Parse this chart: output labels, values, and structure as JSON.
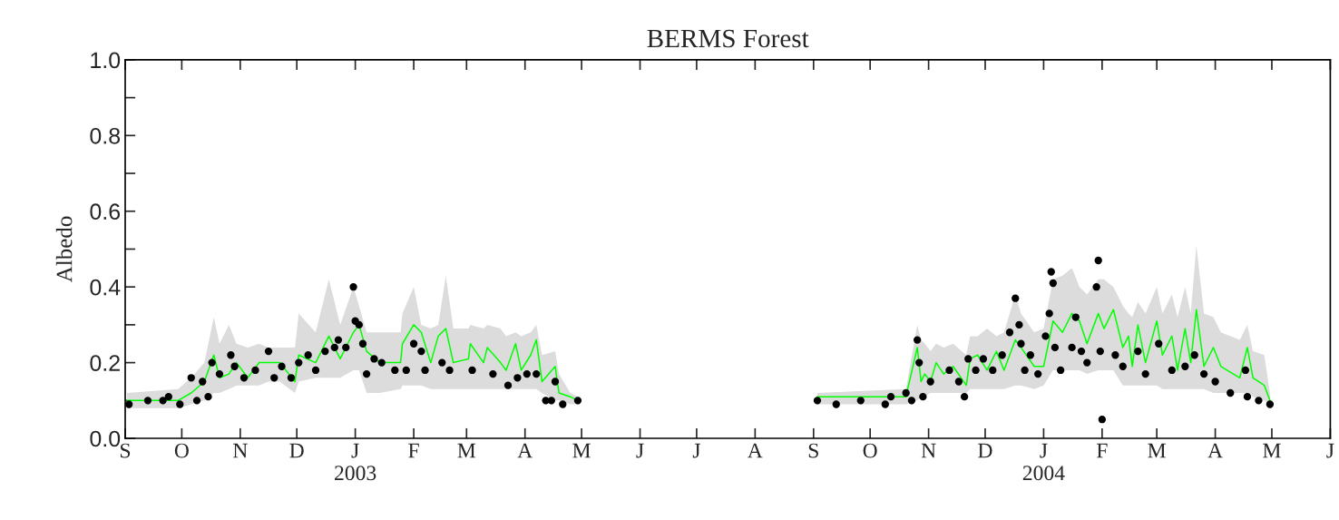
{
  "chart_data": {
    "type": "line",
    "title": "BERMS Forest",
    "ylabel": "Albedo",
    "xlim": [
      "2002-09-01",
      "2004-06-01"
    ],
    "xticks": [
      {
        "value": "2002-09-01",
        "label": "S"
      },
      {
        "value": "2002-10-01",
        "label": "O"
      },
      {
        "value": "2002-11-01",
        "label": "N"
      },
      {
        "value": "2002-12-01",
        "label": "D"
      },
      {
        "value": "2003-01-01",
        "label": "J\n2003"
      },
      {
        "value": "2003-02-01",
        "label": "F"
      },
      {
        "value": "2003-03-01",
        "label": "M"
      },
      {
        "value": "2003-04-01",
        "label": "A"
      },
      {
        "value": "2003-05-01",
        "label": "M"
      },
      {
        "value": "2003-06-01",
        "label": "J"
      },
      {
        "value": "2003-07-01",
        "label": "J"
      },
      {
        "value": "2003-08-01",
        "label": "A"
      },
      {
        "value": "2003-09-01",
        "label": "S"
      },
      {
        "value": "2003-10-01",
        "label": "O"
      },
      {
        "value": "2003-11-01",
        "label": "N"
      },
      {
        "value": "2003-12-01",
        "label": "D"
      },
      {
        "value": "2004-01-01",
        "label": "J\n2004"
      },
      {
        "value": "2004-02-01",
        "label": "F"
      },
      {
        "value": "2004-03-01",
        "label": "M"
      },
      {
        "value": "2004-04-01",
        "label": "A"
      },
      {
        "value": "2004-05-01",
        "label": "M"
      },
      {
        "value": "2004-06-01",
        "label": "J"
      }
    ],
    "ylim": [
      0,
      1
    ],
    "yticks": [
      {
        "value": 0,
        "label": "0.0"
      },
      {
        "value": 0.1,
        "label": null
      },
      {
        "value": 0.2,
        "label": "0.2"
      },
      {
        "value": 0.3,
        "label": null
      },
      {
        "value": 0.4,
        "label": "0.4"
      },
      {
        "value": 0.5,
        "label": null
      },
      {
        "value": 0.6,
        "label": "0.6"
      },
      {
        "value": 0.7,
        "label": null
      },
      {
        "value": 0.8,
        "label": "0.8"
      },
      {
        "value": 0.9,
        "label": null
      },
      {
        "value": 1,
        "label": "1.0"
      }
    ],
    "grid": false,
    "series": [
      {
        "color": "#00ff00",
        "marker": "none",
        "line_style": "solid",
        "x": [
          "2002-09-02",
          "2002-09-29",
          "2002-10-06",
          "2002-10-13",
          "2002-10-18",
          "2002-10-21",
          "2002-10-26",
          "2002-10-30",
          "2002-11-05",
          "2002-11-11",
          "2002-11-16",
          "2002-11-22",
          "2002-11-30",
          "2002-12-02",
          "2002-12-11",
          "2002-12-18",
          "2002-12-24",
          "2002-12-31",
          "2003-01-03",
          "2003-01-07",
          "2003-01-14",
          "2003-01-25",
          "2003-01-26",
          "2003-02-01",
          "2003-02-05",
          "2003-02-10",
          "2003-02-14",
          "2003-02-18",
          "2003-02-22",
          "2003-03-02",
          "2003-03-03",
          "2003-03-10",
          "2003-03-12",
          "2003-03-19",
          "2003-03-22",
          "2003-03-27",
          "2003-03-30",
          "2003-04-04",
          "2003-04-07",
          "2003-04-10",
          "2003-04-17",
          "2003-04-19",
          "2003-04-25",
          "2003-04-29",
          "2003-07-01",
          "2003-09-03",
          "2003-10-20",
          "2003-10-26",
          "2003-10-28",
          "2003-10-30",
          "2003-11-02",
          "2003-11-05",
          "2003-11-09",
          "2003-11-14",
          "2003-11-21",
          "2003-11-23",
          "2003-11-27",
          "2003-12-02",
          "2003-12-07",
          "2003-12-11",
          "2003-12-17",
          "2003-12-20",
          "2003-12-27",
          "2004-01-01",
          "2004-01-06",
          "2004-01-11",
          "2004-01-16",
          "2004-01-20",
          "2004-01-24",
          "2004-01-30",
          "2004-02-02",
          "2004-02-07",
          "2004-02-12",
          "2004-02-15",
          "2004-02-17",
          "2004-02-20",
          "2004-02-24",
          "2004-03-01",
          "2004-03-04",
          "2004-03-09",
          "2004-03-12",
          "2004-03-16",
          "2004-03-19",
          "2004-03-22",
          "2004-03-26",
          "2004-03-31",
          "2004-04-04",
          "2004-04-14",
          "2004-04-18",
          "2004-04-21",
          "2004-04-27",
          "2004-04-30"
        ],
        "values": [
          0.1,
          0.1,
          0.12,
          0.15,
          0.22,
          0.16,
          0.17,
          0.2,
          0.16,
          0.2,
          0.2,
          0.2,
          0.15,
          0.22,
          0.2,
          0.27,
          0.21,
          0.28,
          0.3,
          0.23,
          0.2,
          0.2,
          0.25,
          0.3,
          0.28,
          0.2,
          0.27,
          0.29,
          0.2,
          0.21,
          0.25,
          0.2,
          0.24,
          0.2,
          0.18,
          0.25,
          0.18,
          0.22,
          0.26,
          0.15,
          0.19,
          0.12,
          0.11,
          0.1,
          null,
          0.11,
          0.11,
          0.24,
          0.15,
          0.17,
          0.15,
          0.2,
          0.17,
          0.19,
          0.14,
          0.21,
          0.22,
          0.18,
          0.23,
          0.18,
          0.26,
          0.24,
          0.19,
          0.19,
          0.31,
          0.28,
          0.33,
          0.31,
          0.25,
          0.33,
          0.29,
          0.34,
          0.24,
          0.27,
          0.19,
          0.3,
          0.2,
          0.31,
          0.22,
          0.27,
          0.18,
          0.29,
          0.2,
          0.34,
          0.19,
          0.24,
          0.19,
          0.16,
          0.24,
          0.16,
          0.14,
          0.1
        ],
        "lower": [
          0.08,
          0.08,
          0.09,
          0.1,
          0.12,
          0.12,
          0.13,
          0.14,
          0.14,
          0.14,
          0.15,
          0.15,
          0.12,
          0.15,
          0.16,
          0.16,
          0.16,
          0.18,
          0.18,
          0.12,
          0.12,
          0.13,
          0.14,
          0.14,
          0.14,
          0.13,
          0.13,
          0.13,
          0.13,
          0.13,
          0.13,
          0.13,
          0.13,
          0.13,
          0.13,
          0.13,
          0.13,
          0.13,
          0.13,
          0.12,
          0.1,
          0.1,
          0.09,
          0.09,
          null,
          0.09,
          0.09,
          0.1,
          0.11,
          0.11,
          0.12,
          0.12,
          0.12,
          0.12,
          0.12,
          0.13,
          0.13,
          0.13,
          0.13,
          0.13,
          0.14,
          0.14,
          0.13,
          0.14,
          0.18,
          0.18,
          0.18,
          0.18,
          0.17,
          0.18,
          0.18,
          0.18,
          0.14,
          0.14,
          0.14,
          0.14,
          0.14,
          0.14,
          0.13,
          0.13,
          0.13,
          0.13,
          0.13,
          0.13,
          0.13,
          0.12,
          0.12,
          0.12,
          0.12,
          0.11,
          0.1,
          0.09
        ],
        "upper": [
          0.12,
          0.13,
          0.16,
          0.2,
          0.32,
          0.25,
          0.3,
          0.25,
          0.24,
          0.25,
          0.24,
          0.24,
          0.24,
          0.33,
          0.28,
          0.42,
          0.3,
          0.4,
          0.35,
          0.28,
          0.28,
          0.28,
          0.33,
          0.4,
          0.3,
          0.29,
          0.3,
          0.43,
          0.29,
          0.29,
          0.3,
          0.29,
          0.3,
          0.29,
          0.27,
          0.28,
          0.27,
          0.28,
          0.3,
          0.22,
          0.23,
          0.17,
          0.12,
          0.11,
          null,
          0.12,
          0.13,
          0.3,
          0.26,
          0.25,
          0.23,
          0.25,
          0.24,
          0.25,
          0.22,
          0.27,
          0.27,
          0.29,
          0.27,
          0.28,
          0.38,
          0.33,
          0.28,
          0.29,
          0.42,
          0.43,
          0.45,
          0.4,
          0.38,
          0.42,
          0.42,
          0.4,
          0.35,
          0.33,
          0.32,
          0.36,
          0.33,
          0.4,
          0.33,
          0.38,
          0.32,
          0.4,
          0.33,
          0.51,
          0.33,
          0.32,
          0.28,
          0.26,
          0.3,
          0.23,
          0.22,
          0.12
        ]
      },
      {
        "type": "scatter",
        "color": "#000000",
        "marker": "circle",
        "x": [
          "2002-09-03",
          "2002-09-13",
          "2002-09-21",
          "2002-09-24",
          "2002-09-30",
          "2002-10-06",
          "2002-10-09",
          "2002-10-12",
          "2002-10-15",
          "2002-10-17",
          "2002-10-21",
          "2002-10-27",
          "2002-10-29",
          "2002-11-03",
          "2002-11-09",
          "2002-11-16",
          "2002-11-19",
          "2002-11-23",
          "2002-11-28",
          "2002-12-02",
          "2002-12-07",
          "2002-12-11",
          "2002-12-16",
          "2002-12-21",
          "2002-12-23",
          "2002-12-27",
          "2002-12-31",
          "2003-01-01",
          "2003-01-03",
          "2003-01-05",
          "2003-01-07",
          "2003-01-11",
          "2003-01-15",
          "2003-01-22",
          "2003-01-28",
          "2003-02-01",
          "2003-02-05",
          "2003-02-07",
          "2003-02-16",
          "2003-02-20",
          "2003-03-04",
          "2003-03-15",
          "2003-03-23",
          "2003-03-28",
          "2003-04-02",
          "2003-04-07",
          "2003-04-12",
          "2003-04-15",
          "2003-04-17",
          "2003-04-21",
          "2003-04-29",
          "2003-09-03",
          "2003-09-13",
          "2003-09-26",
          "2003-10-09",
          "2003-10-12",
          "2003-10-20",
          "2003-10-23",
          "2003-10-26",
          "2003-10-27",
          "2003-10-29",
          "2003-11-02",
          "2003-11-12",
          "2003-11-17",
          "2003-11-20",
          "2003-11-22",
          "2003-11-26",
          "2003-11-30",
          "2003-12-05",
          "2003-12-10",
          "2003-12-14",
          "2003-12-17",
          "2003-12-19",
          "2003-12-20",
          "2003-12-22",
          "2003-12-25",
          "2003-12-29",
          "2004-01-02",
          "2004-01-04",
          "2004-01-05",
          "2004-01-06",
          "2004-01-07",
          "2004-01-10",
          "2004-01-16",
          "2004-01-18",
          "2004-01-21",
          "2004-01-24",
          "2004-01-29",
          "2004-01-30",
          "2004-01-31",
          "2004-02-01",
          "2004-02-08",
          "2004-02-12",
          "2004-02-20",
          "2004-02-24",
          "2004-03-02",
          "2004-03-09",
          "2004-03-16",
          "2004-03-21",
          "2004-03-26",
          "2004-04-01",
          "2004-04-09",
          "2004-04-17",
          "2004-04-18",
          "2004-04-24",
          "2004-04-30"
        ],
        "values": [
          0.09,
          0.1,
          0.1,
          0.11,
          0.09,
          0.16,
          0.1,
          0.15,
          0.11,
          0.2,
          0.17,
          0.22,
          0.19,
          0.16,
          0.18,
          0.23,
          0.16,
          0.19,
          0.16,
          0.2,
          0.22,
          0.18,
          0.23,
          0.24,
          0.26,
          0.24,
          0.4,
          0.31,
          0.3,
          0.25,
          0.17,
          0.21,
          0.2,
          0.18,
          0.18,
          0.25,
          0.23,
          0.18,
          0.2,
          0.18,
          0.18,
          0.17,
          0.14,
          0.16,
          0.17,
          0.17,
          0.1,
          0.1,
          0.15,
          0.09,
          0.1,
          0.1,
          0.09,
          0.1,
          0.09,
          0.11,
          0.12,
          0.1,
          0.26,
          0.2,
          0.11,
          0.15,
          0.18,
          0.15,
          0.11,
          0.21,
          0.18,
          0.21,
          0.18,
          0.22,
          0.28,
          0.37,
          0.3,
          0.25,
          0.18,
          0.22,
          0.17,
          0.27,
          0.33,
          0.44,
          0.41,
          0.24,
          0.18,
          0.24,
          0.32,
          0.23,
          0.2,
          0.4,
          0.47,
          0.23,
          0.05,
          0.22,
          0.19,
          0.23,
          0.17,
          0.25,
          0.18,
          0.19,
          0.22,
          0.17,
          0.15,
          0.12,
          0.18,
          0.11,
          0.1,
          0.09
        ]
      }
    ]
  }
}
